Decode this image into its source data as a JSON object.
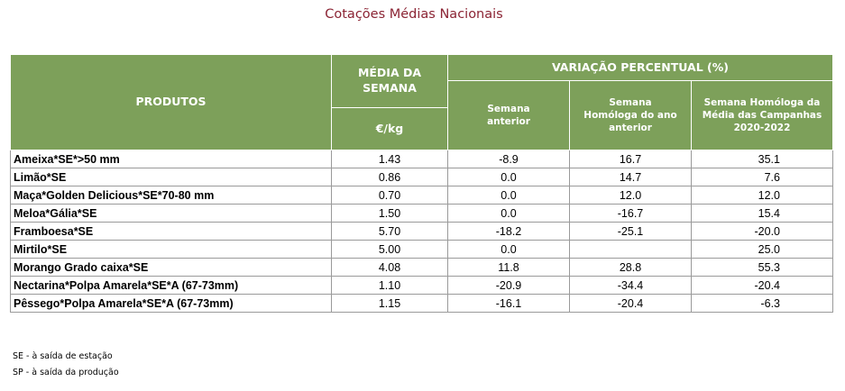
{
  "title": "Cotações Médias Nacionais",
  "headers": {
    "produtos": "PRODUTOS",
    "media": "MÉDIA DA SEMANA",
    "unit": "€/kg",
    "variacao": "VARIAÇÃO PERCENTUAL (%)",
    "semana_anterior": "Semana anterior",
    "homologa_ano": "Semana Homóloga do ano anterior",
    "homologa_campanhas": "Semana Homóloga da Média das Campanhas 2020-2022"
  },
  "rows": [
    {
      "produto": "Ameixa*SE*>50 mm",
      "media": "1.43",
      "anterior": "-8.9",
      "homologa": "16.7",
      "campanhas": "35.1"
    },
    {
      "produto": "Limão*SE",
      "media": "0.86",
      "anterior": "0.0",
      "homologa": "14.7",
      "campanhas": "7.6"
    },
    {
      "produto": "Maça*Golden Delicious*SE*70-80 mm",
      "media": "0.70",
      "anterior": "0.0",
      "homologa": "12.0",
      "campanhas": "12.0"
    },
    {
      "produto": "Meloa*Gália*SE",
      "media": "1.50",
      "anterior": "0.0",
      "homologa": "-16.7",
      "campanhas": "15.4"
    },
    {
      "produto": "Framboesa*SE",
      "media": "5.70",
      "anterior": "-18.2",
      "homologa": "-25.1",
      "campanhas": "-20.0"
    },
    {
      "produto": "Mirtilo*SE",
      "media": "5.00",
      "anterior": "0.0",
      "homologa": "",
      "campanhas": "25.0"
    },
    {
      "produto": "Morango Grado caixa*SE",
      "media": "4.08",
      "anterior": "11.8",
      "homologa": "28.8",
      "campanhas": "55.3"
    },
    {
      "produto": "Nectarina*Polpa Amarela*SE*A (67-73mm)",
      "media": "1.10",
      "anterior": "-20.9",
      "homologa": "-34.4",
      "campanhas": "-20.4"
    },
    {
      "produto": "Pêssego*Polpa Amarela*SE*A (67-73mm)",
      "media": "1.15",
      "anterior": "-16.1",
      "homologa": "-20.4",
      "campanhas": "-6.3"
    }
  ],
  "footnotes": [
    "SE - à saída de estação",
    "SP - à saída da produção"
  ],
  "colors": {
    "header_bg": "#7da05a",
    "title": "#8b2434"
  }
}
